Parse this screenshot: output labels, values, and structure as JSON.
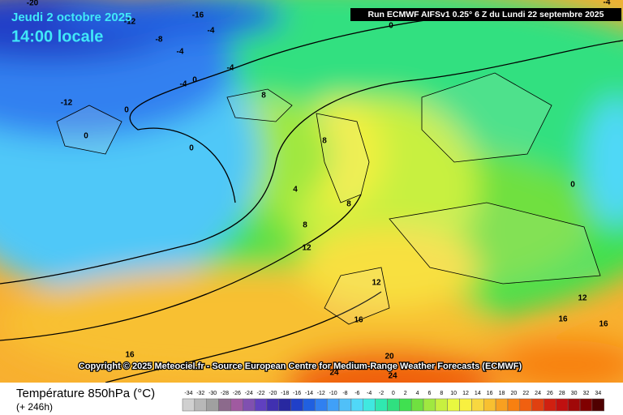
{
  "header": {
    "date": "Jeudi 2 octobre 2025",
    "time": "14:00 locale",
    "run": "Run ECMWF AIFSv1 0.25° 6 Z du Lundi 22 septembre 2025"
  },
  "copyright": "Copyright © 2025 Meteociel.fr - Source European Centre for Medium-Range Weather Forecasts (ECMWF)",
  "footer": {
    "title": "Température 850hPa (°C)",
    "lead": "(+ 246h)"
  },
  "map": {
    "contour_labels": [
      "-20",
      "-16",
      "-12",
      "-8",
      "-4",
      "-4",
      "-4",
      "-4",
      "0",
      "-12",
      "0",
      "0",
      "0",
      "0",
      "8",
      "8",
      "4",
      "8",
      "8",
      "12",
      "12",
      "16",
      "16",
      "16",
      "20",
      "24",
      "24",
      "12",
      "16",
      "0",
      "-4"
    ]
  },
  "legend": {
    "ticks": [
      -34,
      -32,
      -30,
      -28,
      -26,
      -24,
      -22,
      -20,
      -18,
      -16,
      -14,
      -12,
      -10,
      -8,
      -6,
      -4,
      -2,
      0,
      2,
      4,
      6,
      8,
      10,
      12,
      14,
      16,
      18,
      20,
      22,
      24,
      26,
      28,
      30,
      32,
      34
    ],
    "colors": [
      "#d0d0d0",
      "#b8b8b8",
      "#a0a0a0",
      "#8c6a8c",
      "#a05aa0",
      "#8050b0",
      "#6040c0",
      "#4030b0",
      "#2828a0",
      "#2040c8",
      "#2060e0",
      "#3080f0",
      "#40a0f8",
      "#50c0f8",
      "#50d8f8",
      "#40e8e0",
      "#30e8b0",
      "#30e080",
      "#40e050",
      "#70e040",
      "#a0e840",
      "#c8f040",
      "#e8f840",
      "#f8f040",
      "#f8d840",
      "#f8c030",
      "#f8a020",
      "#f88010",
      "#f06010",
      "#e04010",
      "#d02010",
      "#c01010",
      "#a00808",
      "#800000",
      "#500000"
    ]
  }
}
